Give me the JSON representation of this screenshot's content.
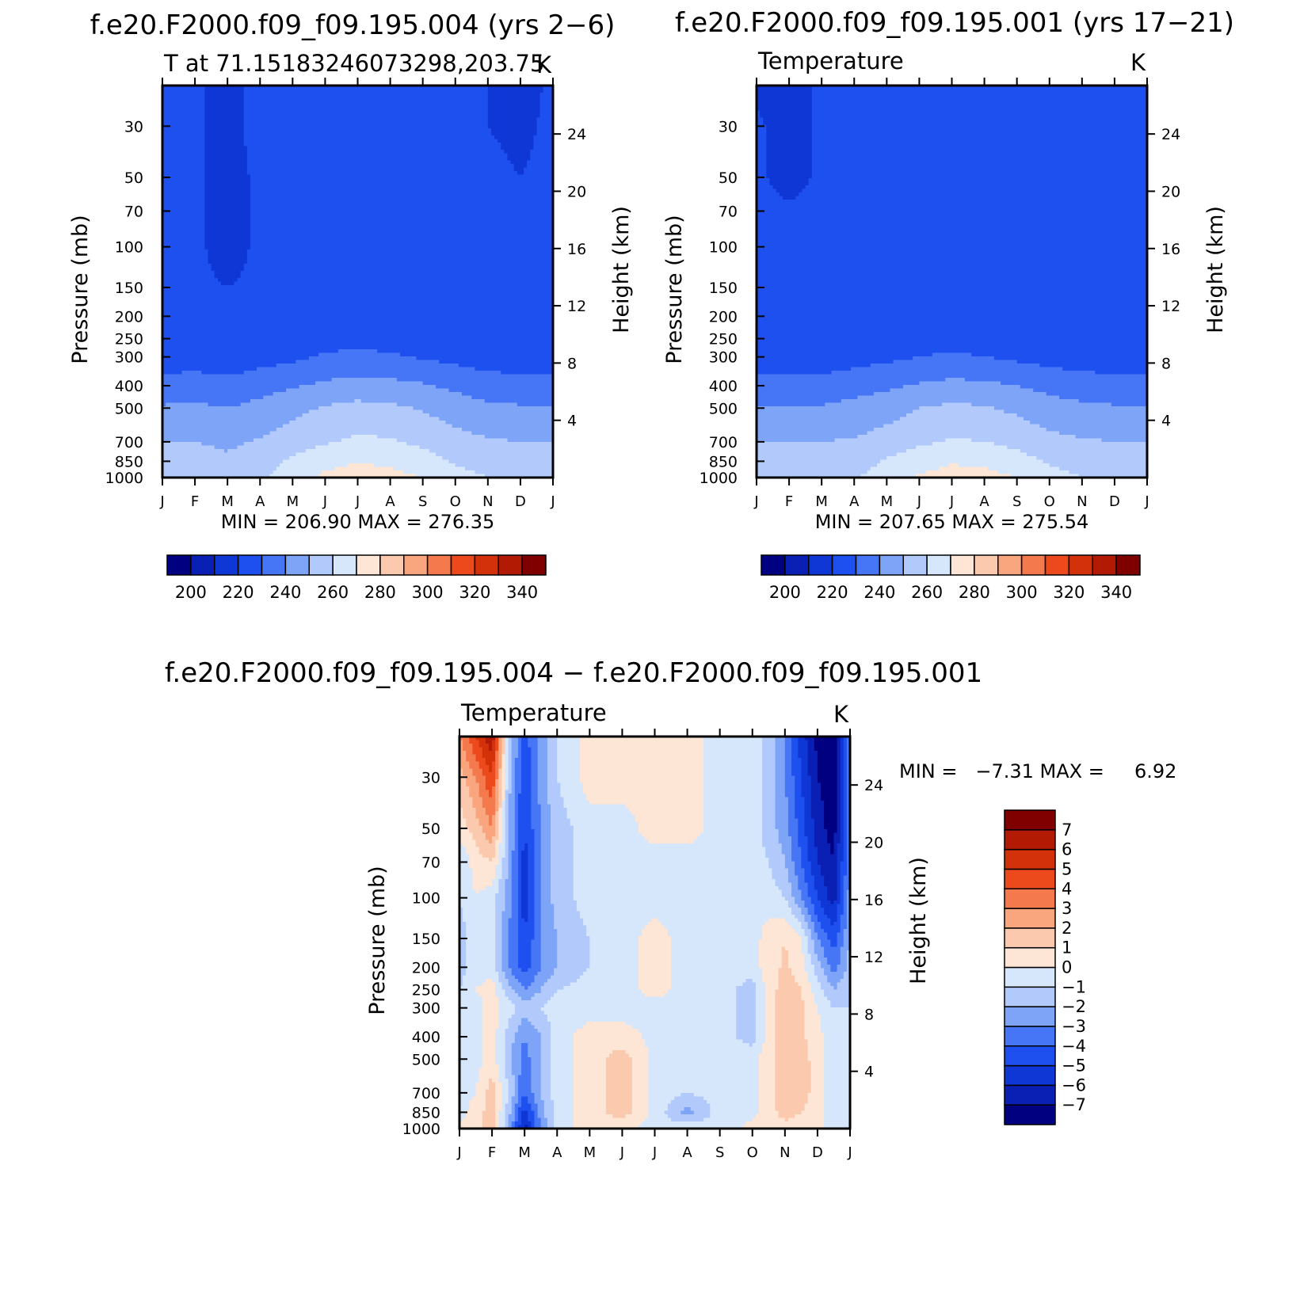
{
  "colors": {
    "cmap_abs": [
      "#000080",
      "#0a1fb4",
      "#0f37d6",
      "#1e50f0",
      "#4676f5",
      "#7ea4f8",
      "#b2cafb",
      "#d6e7fc",
      "#fde6d5",
      "#fbc9ae",
      "#f9a57e",
      "#f47a4e",
      "#ec4a1c",
      "#d3310a",
      "#b21a04",
      "#800000"
    ],
    "cmap_diff": [
      "#000080",
      "#0a1fb4",
      "#0f37d6",
      "#1e50f0",
      "#4676f5",
      "#7ea4f8",
      "#b2cafb",
      "#d6e7fc",
      "#fde6d5",
      "#fbc9ae",
      "#f9a57e",
      "#f47a4e",
      "#ec4a1c",
      "#d3310a",
      "#b21a04",
      "#800000"
    ]
  },
  "chart_data": [
    {
      "type": "contour",
      "title": "f.e20.F2000.f09_f09.195.004 (yrs 2−6)",
      "subtitle_left": "T at 71.15183246073298,203.75",
      "subtitle_right": "K",
      "minmax_text": "MIN = 206.90 MAX = 276.35",
      "min": 206.9,
      "max": 276.35,
      "xlabel": "",
      "ylabel": "Pressure (mb)",
      "ylabel_right": "Height (km)",
      "x_ticks": [
        "J",
        "F",
        "M",
        "A",
        "M",
        "J",
        "J",
        "A",
        "S",
        "O",
        "N",
        "D",
        "J"
      ],
      "y_ticks": [
        30,
        50,
        70,
        100,
        150,
        200,
        250,
        300,
        400,
        500,
        700,
        850,
        1000
      ],
      "y_ticks_right": [
        24,
        20,
        16,
        12,
        8,
        4
      ],
      "ylim_mb": [
        1000,
        20
      ],
      "log_y": true,
      "levels": [
        200,
        210,
        220,
        230,
        240,
        250,
        260,
        270,
        280,
        290,
        300,
        310,
        320,
        330,
        340
      ],
      "colorbar_labels": [
        200,
        220,
        240,
        260,
        280,
        300,
        320,
        340
      ],
      "contour_pressure_mb": [
        1000,
        850,
        700,
        500,
        400,
        300,
        250,
        200,
        150,
        100,
        70,
        50,
        30,
        20
      ],
      "temperature_K": [
        [
          258,
          259,
          256,
          258,
          265,
          272,
          274,
          273,
          270,
          264,
          260,
          258,
          258
        ],
        [
          253,
          254,
          252,
          255,
          262,
          267,
          270,
          268,
          264,
          259,
          255,
          253,
          253
        ],
        [
          250,
          250,
          248,
          251,
          255,
          259,
          262,
          261,
          258,
          254,
          251,
          250,
          250
        ],
        [
          241,
          242,
          240,
          243,
          247,
          251,
          253,
          252,
          249,
          245,
          242,
          241,
          241
        ],
        [
          234,
          235,
          233,
          236,
          239,
          242,
          244,
          243,
          241,
          238,
          235,
          234,
          234
        ],
        [
          224,
          225,
          224,
          226,
          228,
          231,
          232,
          231,
          229,
          227,
          225,
          224,
          224
        ],
        [
          222,
          222,
          221,
          223,
          226,
          227,
          227,
          227,
          226,
          224,
          222,
          222,
          222
        ],
        [
          221,
          221,
          220,
          221,
          225,
          226,
          226,
          226,
          226,
          225,
          221,
          221,
          221
        ],
        [
          221,
          221,
          220,
          221,
          225,
          226,
          226,
          226,
          226,
          225,
          221,
          221,
          221
        ],
        [
          221,
          221,
          218,
          221,
          225,
          226,
          226,
          226,
          226,
          225,
          221,
          221,
          221
        ],
        [
          221,
          221,
          218,
          221,
          225,
          226,
          226,
          226,
          226,
          224,
          221,
          221,
          221
        ],
        [
          221,
          221,
          218,
          221,
          225,
          226,
          226,
          226,
          225,
          222,
          221,
          220,
          221
        ],
        [
          221,
          221,
          218,
          222,
          225,
          226,
          226,
          226,
          224,
          221,
          220,
          219,
          221
        ],
        [
          221,
          221,
          218,
          222,
          225,
          226,
          226,
          226,
          224,
          221,
          220,
          218,
          221
        ]
      ]
    },
    {
      "type": "contour",
      "title": "f.e20.F2000.f09_f09.195.001 (yrs 17−21)",
      "subtitle_left": "Temperature",
      "subtitle_right": "K",
      "minmax_text": "MIN = 207.65 MAX = 275.54",
      "min": 207.65,
      "max": 275.54,
      "xlabel": "",
      "ylabel": "Pressure (mb)",
      "ylabel_right": "Height (km)",
      "x_ticks": [
        "J",
        "F",
        "M",
        "A",
        "M",
        "J",
        "J",
        "A",
        "S",
        "O",
        "N",
        "D",
        "J"
      ],
      "y_ticks": [
        30,
        50,
        70,
        100,
        150,
        200,
        250,
        300,
        400,
        500,
        700,
        850,
        1000
      ],
      "y_ticks_right": [
        24,
        20,
        16,
        12,
        8,
        4
      ],
      "ylim_mb": [
        1000,
        20
      ],
      "log_y": true,
      "levels": [
        200,
        210,
        220,
        230,
        240,
        250,
        260,
        270,
        280,
        290,
        300,
        310,
        320,
        330,
        340
      ],
      "colorbar_labels": [
        200,
        220,
        240,
        260,
        280,
        300,
        320,
        340
      ],
      "contour_pressure_mb": [
        1000,
        850,
        700,
        500,
        400,
        300,
        250,
        200,
        150,
        100,
        70,
        50,
        30,
        20
      ],
      "temperature_K": [
        [
          258,
          258,
          258,
          259,
          265,
          271,
          274,
          273,
          270,
          264,
          260,
          259,
          258
        ],
        [
          253,
          253,
          253,
          255,
          261,
          266,
          269,
          268,
          264,
          259,
          255,
          253,
          253
        ],
        [
          250,
          250,
          250,
          251,
          254,
          258,
          261,
          260,
          257,
          253,
          251,
          250,
          250
        ],
        [
          241,
          241,
          241,
          243,
          246,
          250,
          252,
          251,
          248,
          244,
          242,
          241,
          241
        ],
        [
          234,
          234,
          234,
          236,
          238,
          241,
          243,
          242,
          240,
          237,
          235,
          234,
          234
        ],
        [
          224,
          224,
          224,
          226,
          228,
          230,
          231,
          230,
          228,
          226,
          225,
          224,
          224
        ],
        [
          222,
          222,
          222,
          223,
          226,
          227,
          227,
          227,
          225,
          223,
          222,
          222,
          222
        ],
        [
          221,
          221,
          221,
          221,
          225,
          226,
          226,
          226,
          226,
          222,
          221,
          221,
          221
        ],
        [
          221,
          221,
          221,
          221,
          225,
          226,
          226,
          226,
          226,
          222,
          221,
          221,
          221
        ],
        [
          221,
          221,
          221,
          221,
          225,
          226,
          226,
          226,
          226,
          222,
          221,
          221,
          221
        ],
        [
          221,
          221,
          221,
          221,
          225,
          226,
          226,
          226,
          226,
          222,
          221,
          221,
          221
        ],
        [
          221,
          218,
          221,
          221,
          225,
          226,
          226,
          226,
          226,
          222,
          221,
          221,
          221
        ],
        [
          221,
          217,
          221,
          221,
          225,
          226,
          226,
          226,
          225,
          221,
          221,
          221,
          221
        ],
        [
          219,
          217,
          221,
          221,
          225,
          226,
          226,
          226,
          225,
          221,
          221,
          221,
          221
        ]
      ]
    },
    {
      "type": "contour",
      "title": "f.e20.F2000.f09_f09.195.004 − f.e20.F2000.f09_f09.195.001",
      "subtitle_left": "Temperature",
      "subtitle_right": "K",
      "minmax_text": "MIN =   −7.31 MAX =     6.92",
      "min": -7.31,
      "max": 6.92,
      "xlabel": "",
      "ylabel": "Pressure (mb)",
      "ylabel_right": "Height (km)",
      "x_ticks": [
        "J",
        "F",
        "M",
        "A",
        "M",
        "J",
        "J",
        "A",
        "S",
        "O",
        "N",
        "D",
        "J"
      ],
      "y_ticks": [
        30,
        50,
        70,
        100,
        150,
        200,
        250,
        300,
        400,
        500,
        700,
        850,
        1000
      ],
      "y_ticks_right": [
        24,
        20,
        16,
        12,
        8,
        4
      ],
      "ylim_mb": [
        1000,
        20
      ],
      "log_y": true,
      "levels": [
        -7,
        -6,
        -5,
        -4,
        -3,
        -2,
        -1,
        0,
        1,
        2,
        3,
        4,
        5,
        6,
        7
      ],
      "colorbar_labels": [
        "−7",
        "−6",
        "−5",
        "−4",
        "−3",
        "−2",
        "−1",
        "0",
        "1",
        "2",
        "3",
        "4",
        "5",
        "6",
        "7"
      ],
      "contour_pressure_mb": [
        1000,
        850,
        700,
        500,
        400,
        300,
        250,
        200,
        150,
        100,
        70,
        50,
        30,
        20
      ],
      "months_x": [
        0,
        0.5,
        1,
        1.5,
        2,
        2.5,
        3,
        4,
        5,
        6,
        7,
        8,
        9,
        9.5,
        10,
        10.5,
        11,
        11.5,
        12
      ],
      "dT_K": [
        [
          0.2,
          0.5,
          1.5,
          -2,
          -6.5,
          -3,
          -0.5,
          0.5,
          0.3,
          -0.5,
          -0.3,
          -0.5,
          0.3,
          0.5,
          0.5,
          0.3,
          0.2,
          -0.5,
          -0.5
        ],
        [
          -0.5,
          0.5,
          1.5,
          -1.5,
          -5.5,
          -2.5,
          -0.5,
          0.5,
          1.5,
          -0.3,
          -2.5,
          -0.5,
          -0.3,
          0.5,
          1.5,
          1,
          0.5,
          -0.5,
          -0.5
        ],
        [
          -0.5,
          0,
          1.5,
          -1,
          -4,
          -2,
          -0.5,
          0.5,
          1.5,
          -0.3,
          -1,
          -0.5,
          -0.3,
          0.5,
          2,
          1.5,
          0.5,
          -1,
          -1
        ],
        [
          -1,
          -0.5,
          0.5,
          -1.5,
          -3.5,
          -2,
          -0.5,
          0.5,
          1.5,
          -0.3,
          -0.5,
          -0.5,
          -0.3,
          0.5,
          2,
          1.5,
          0.5,
          -1,
          -1
        ],
        [
          -1,
          -0.5,
          0.5,
          -1.5,
          -3,
          -2,
          -0.5,
          0.5,
          0.5,
          -0.3,
          -0.5,
          -0.5,
          -1.5,
          0.5,
          1.5,
          1.2,
          0.5,
          -1,
          -1
        ],
        [
          -1,
          -0.5,
          0.5,
          -0.5,
          -1.5,
          -1,
          -0.5,
          -0.5,
          -0.5,
          -0.5,
          -0.5,
          -0.5,
          -1.5,
          0.5,
          1.5,
          1.2,
          0,
          -1,
          -1
        ],
        [
          -1,
          0,
          0.5,
          -1.5,
          -3,
          -2,
          -1,
          -0.5,
          -0.5,
          0.5,
          -0.5,
          -0.5,
          -1.5,
          0.5,
          1.5,
          1,
          -0.5,
          -2,
          -1
        ],
        [
          -1.5,
          -0.5,
          -0.5,
          -3,
          -4.5,
          -3,
          -2,
          -1,
          -0.5,
          0.5,
          -0.5,
          -0.5,
          -0.5,
          0.5,
          1.2,
          0.5,
          -1.5,
          -3.5,
          -1.5
        ],
        [
          -1.5,
          -0.5,
          -0.5,
          -3,
          -5,
          -3,
          -2,
          -1,
          -0.5,
          0.5,
          -0.5,
          -0.5,
          -0.5,
          0.5,
          1.0,
          0,
          -3,
          -4.5,
          -2
        ],
        [
          -1,
          0,
          -0.5,
          -2.5,
          -5.5,
          -3,
          -1.5,
          -0.5,
          -0.5,
          -0.5,
          -0.5,
          -0.5,
          -0.5,
          -0.5,
          -1,
          -3,
          -5,
          -6.5,
          -2.5
        ],
        [
          -1,
          0.5,
          1,
          -2,
          -5.5,
          -3,
          -1.5,
          -0.5,
          -0.5,
          -0.5,
          -0.5,
          -0.5,
          -0.5,
          -1,
          -2,
          -4,
          -6,
          -7,
          -3
        ],
        [
          0.5,
          1.5,
          3,
          -2,
          -5,
          -3,
          -1.5,
          -0.5,
          -0.5,
          0.5,
          0.5,
          -0.5,
          -0.5,
          -1.5,
          -2.5,
          -4.5,
          -6.5,
          -7.5,
          -3
        ],
        [
          1.5,
          3,
          5,
          -1.5,
          -5,
          -2.5,
          -1,
          0.5,
          0.5,
          0.5,
          0.5,
          -0.5,
          -0.5,
          -1.5,
          -3,
          -5,
          -7,
          -7.5,
          -3
        ],
        [
          3,
          5,
          6.9,
          -1,
          -4.5,
          -2.5,
          -1,
          0.5,
          0.5,
          0.5,
          0.5,
          -0.5,
          -0.5,
          -1.5,
          -3,
          -5.5,
          -7.3,
          -7.5,
          -3
        ]
      ]
    }
  ]
}
